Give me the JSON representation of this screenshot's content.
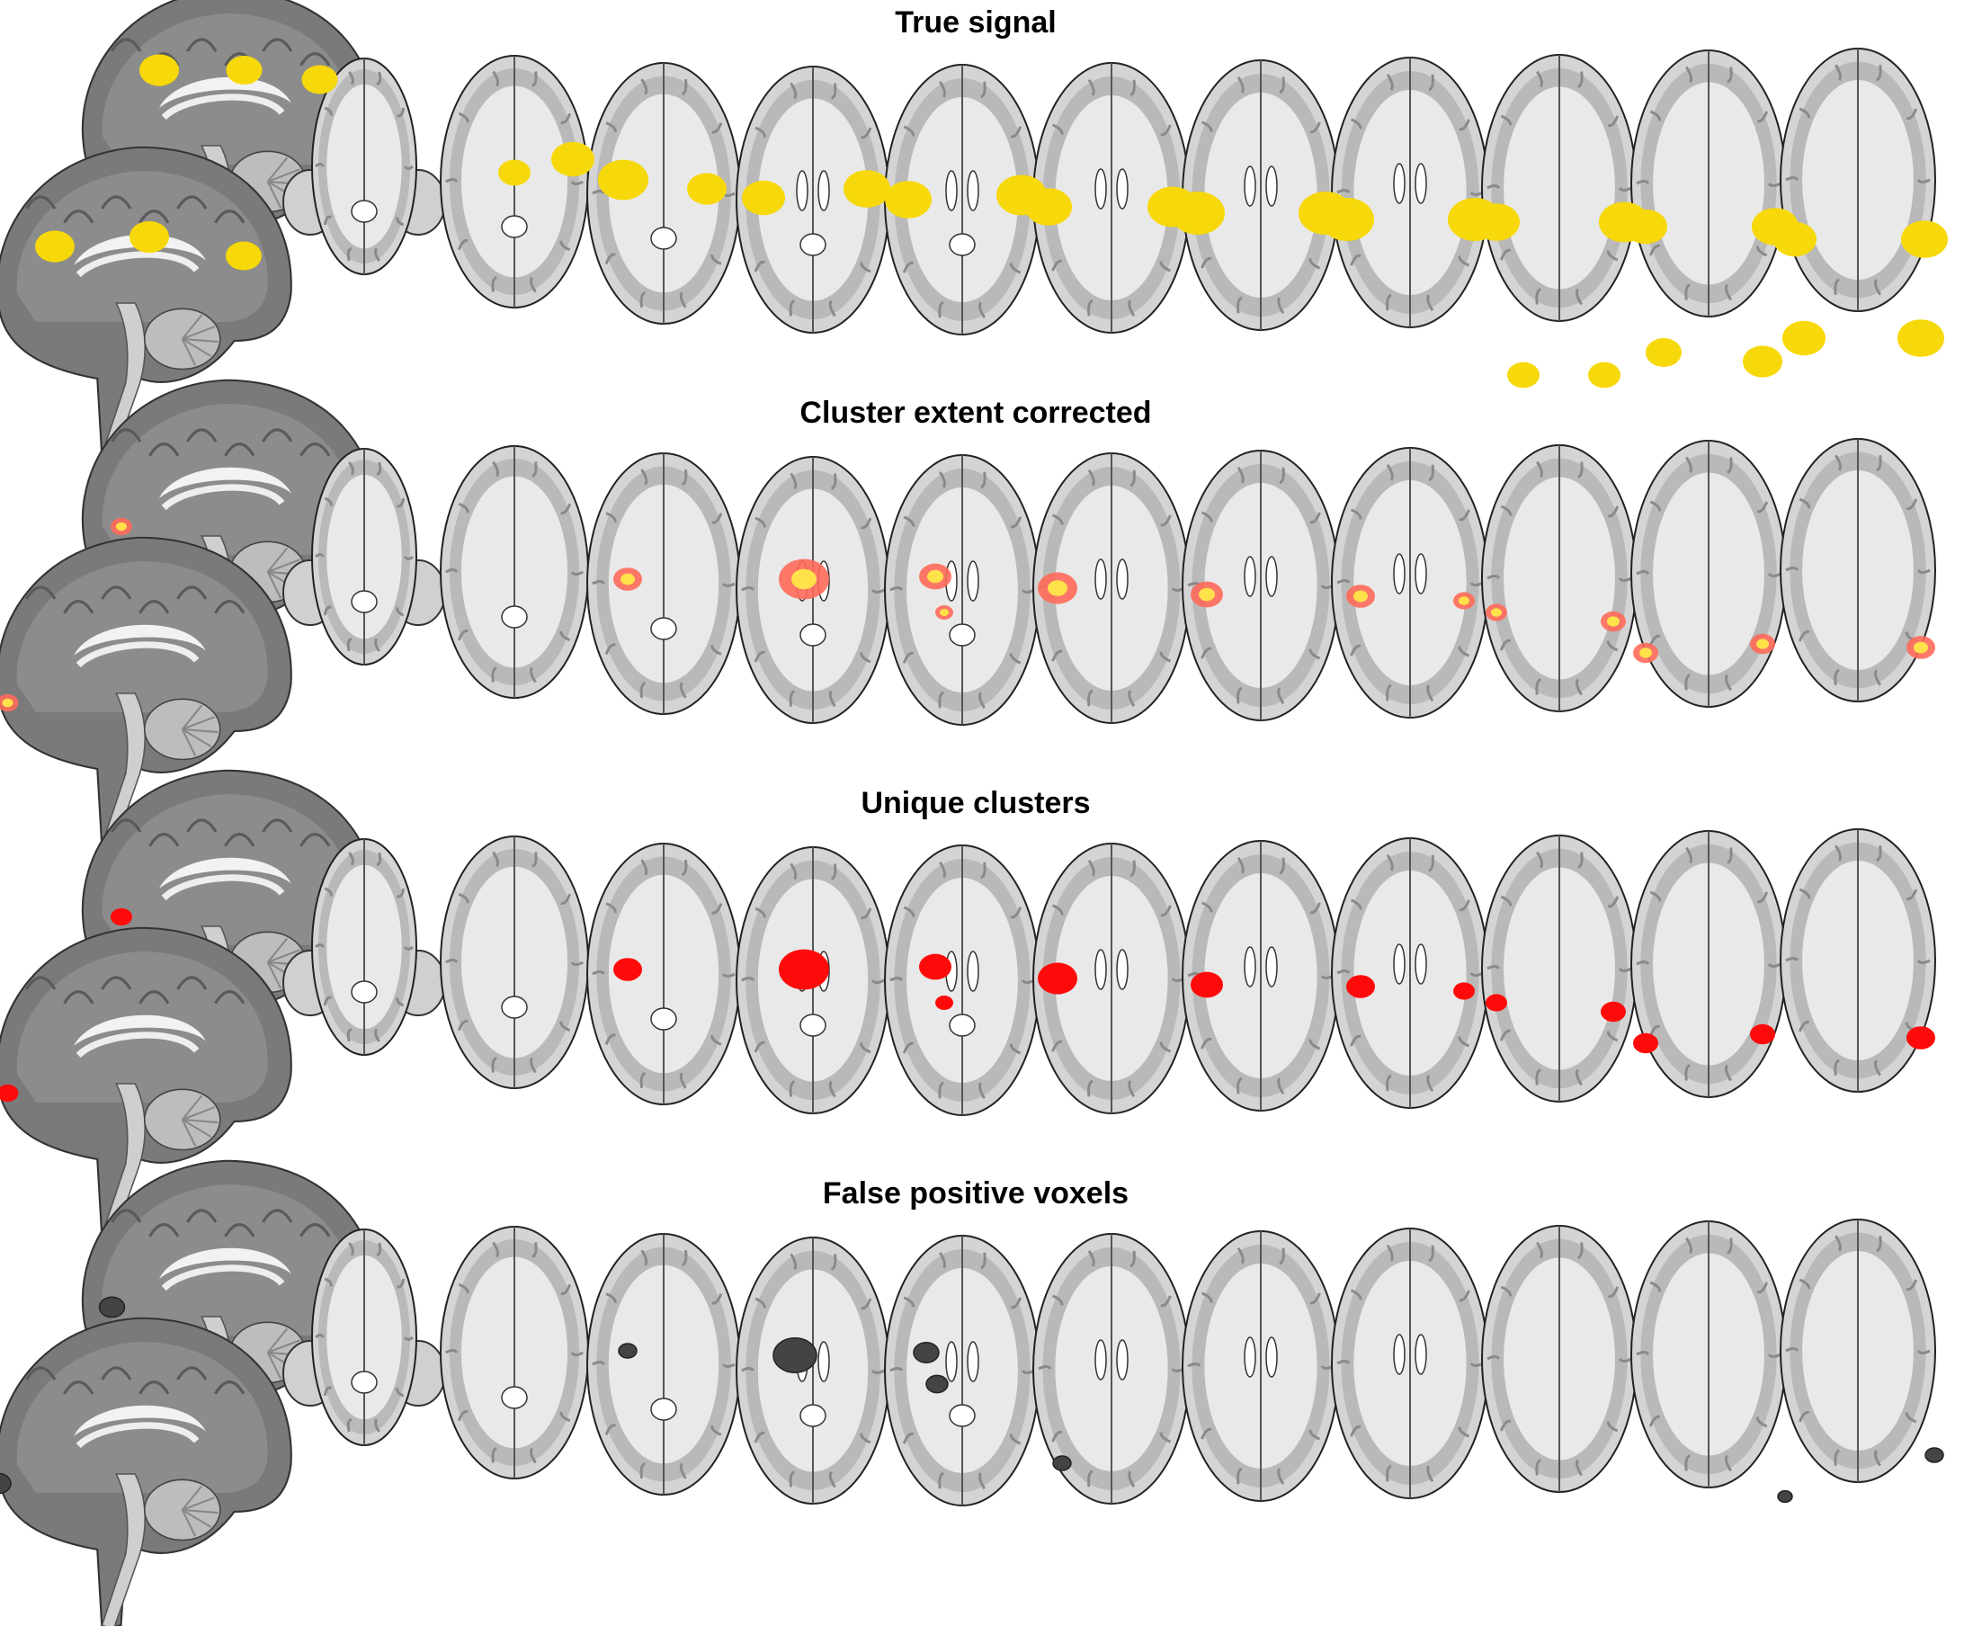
{
  "panels": [
    {
      "key": "true_signal",
      "title": "True signal",
      "overlay": {
        "kind": "yellow",
        "color": "#f7d80a",
        "edge": "#e0bd00"
      }
    },
    {
      "key": "cluster_extent",
      "title": "Cluster extent corrected",
      "overlay": {
        "kind": "heat",
        "color": "#ff6a5a",
        "hot": "#ffe14a"
      }
    },
    {
      "key": "unique_clusters",
      "title": "Unique clusters",
      "overlay": {
        "kind": "red",
        "color": "#ff0a0a"
      }
    },
    {
      "key": "false_positive",
      "title": "False positive voxels",
      "overlay": {
        "kind": "dark",
        "color": "#444444"
      }
    }
  ],
  "axial_slice_count": 11,
  "sagittal_views_per_panel": 2
}
